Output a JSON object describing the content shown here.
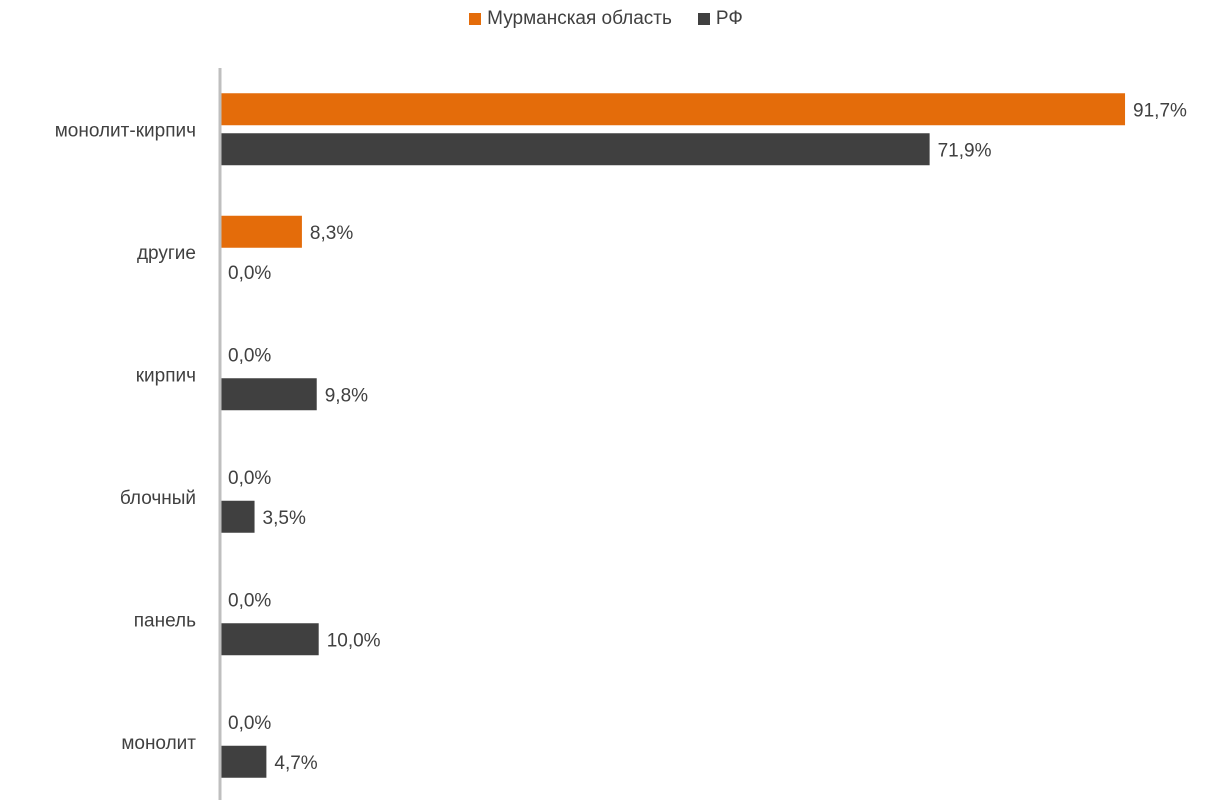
{
  "chart_data": {
    "type": "bar",
    "orientation": "horizontal",
    "categories": [
      "монолит-кирпич",
      "другие",
      "кирпич",
      "блочный",
      "панель",
      "монолит"
    ],
    "series": [
      {
        "name": "Мурманская область",
        "color": "#E46C0A",
        "values": [
          91.7,
          8.3,
          0.0,
          0.0,
          0.0,
          0.0
        ],
        "labels": [
          "91,7%",
          "8,3%",
          "0,0%",
          "0,0%",
          "0,0%",
          "0,0%"
        ]
      },
      {
        "name": "РФ",
        "color": "#404040",
        "values": [
          71.9,
          0.0,
          9.8,
          3.5,
          10.0,
          4.7
        ],
        "labels": [
          "71,9%",
          "0,0%",
          "9,8%",
          "3,5%",
          "10,0%",
          "4,7%"
        ]
      }
    ],
    "xlim": [
      0,
      92
    ],
    "legend_position": "top",
    "grid": false
  }
}
